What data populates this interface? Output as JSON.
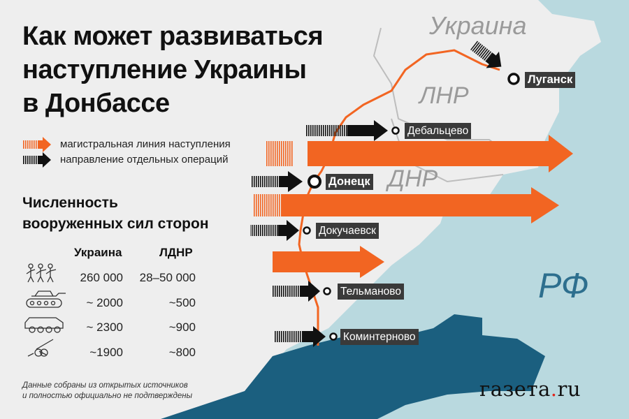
{
  "title": [
    "Как может развиваться",
    "наступление Украины",
    "в Донбассе"
  ],
  "legend": {
    "main_line": "магистральная линия наступления",
    "operations": "направление отдельных операций"
  },
  "regions": {
    "ukraine": "Украина",
    "lnr": "ЛНР",
    "dnr": "ДНР",
    "rf": "РФ"
  },
  "cities": [
    "Луганск",
    "Дебальцево",
    "Донецк",
    "Докучаевск",
    "Тельманово",
    "Коминтерново"
  ],
  "forces": {
    "title": [
      "Численность",
      "вооруженных сил сторон"
    ],
    "columns": [
      "Украина",
      "ЛДНР"
    ],
    "rows": [
      {
        "icon": "soldiers-icon",
        "ukraine": "260 000",
        "ldnr": "28–50 000"
      },
      {
        "icon": "tank-icon",
        "ukraine": "~ 2000",
        "ldnr": "~500"
      },
      {
        "icon": "armored-vehicle-icon",
        "ukraine": "~ 2300",
        "ldnr": "~900"
      },
      {
        "icon": "artillery-icon",
        "ukraine": "~1900",
        "ldnr": "~800"
      }
    ]
  },
  "note": [
    "Данные собраны из открытых источников",
    "и полностью официально не подтверждены"
  ],
  "logo": {
    "pre": "газета",
    "dot": ".",
    "post": "ru"
  },
  "colors": {
    "main_arrow": "#f26522",
    "op_arrow": "#111111",
    "front_line": "#f26522",
    "russia": "#b9d9df",
    "sea": "#1b5f7f",
    "land": "#eeeeee"
  }
}
